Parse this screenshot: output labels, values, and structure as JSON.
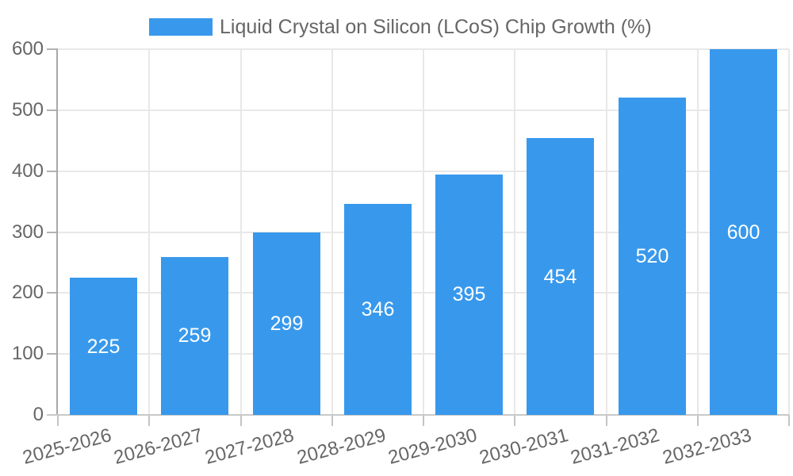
{
  "chart_data": {
    "type": "bar",
    "title": "Liquid Crystal on Silicon (LCoS) Chip Growth (%)",
    "legend_entries": [
      "Liquid Crystal on Silicon (LCoS) Chip Growth (%)"
    ],
    "legend_position": "top",
    "categories": [
      "2025-2026",
      "2026-2027",
      "2027-2028",
      "2028-2029",
      "2029-2030",
      "2030-2031",
      "2031-2032",
      "2032-2033"
    ],
    "values": [
      225,
      259,
      299,
      346,
      395,
      454,
      520,
      600
    ],
    "value_labels": [
      "225",
      "259",
      "299",
      "346",
      "395",
      "454",
      "520",
      "600"
    ],
    "xlabel": "",
    "ylabel": "",
    "ylim": [
      0,
      600
    ],
    "yticks": [
      0,
      100,
      200,
      300,
      400,
      500,
      600
    ],
    "grid": "on",
    "bar_color": "#3899ec",
    "value_label_color": "#ffffff",
    "axis_text_color": "#666666"
  }
}
